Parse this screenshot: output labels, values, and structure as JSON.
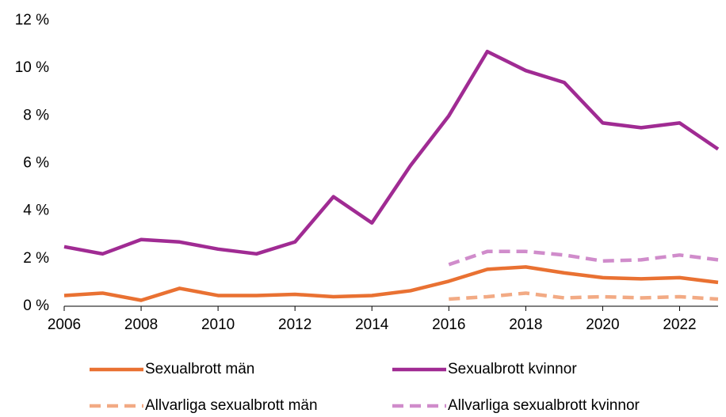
{
  "chart_data": {
    "type": "line",
    "x": [
      2006,
      2007,
      2008,
      2009,
      2010,
      2011,
      2012,
      2013,
      2014,
      2015,
      2016,
      2017,
      2018,
      2019,
      2020,
      2021,
      2022,
      2023
    ],
    "xlim": [
      2006,
      2023
    ],
    "xticks": [
      2006,
      2008,
      2010,
      2012,
      2014,
      2016,
      2018,
      2020,
      2022
    ],
    "ylim": [
      0,
      12
    ],
    "yticks": [
      {
        "value": 0,
        "label": "0 %"
      },
      {
        "value": 2,
        "label": "2 %"
      },
      {
        "value": 4,
        "label": "4 %"
      },
      {
        "value": 6,
        "label": "6 %"
      },
      {
        "value": 8,
        "label": "8 %"
      },
      {
        "value": 10,
        "label": "10 %"
      },
      {
        "value": 12,
        "label": "12 %"
      }
    ],
    "grid": false,
    "legend": "bottom",
    "series": [
      {
        "name": "Sexualbrott män",
        "color": "#e97132",
        "style": "solid",
        "values": [
          0.45,
          0.55,
          0.25,
          0.75,
          0.45,
          0.45,
          0.5,
          0.4,
          0.45,
          0.65,
          1.05,
          1.55,
          1.65,
          1.4,
          1.2,
          1.15,
          1.2,
          1.0
        ]
      },
      {
        "name": "Sexualbrott kvinnor",
        "color": "#a02b93",
        "style": "solid",
        "values": [
          2.5,
          2.2,
          2.8,
          2.7,
          2.4,
          2.2,
          2.7,
          4.6,
          3.5,
          5.9,
          8.0,
          10.7,
          9.9,
          9.4,
          7.7,
          7.5,
          7.7,
          6.6
        ]
      },
      {
        "name": "Allvarliga sexualbrott män",
        "color": "#f2aa84",
        "style": "dashed",
        "values": [
          null,
          null,
          null,
          null,
          null,
          null,
          null,
          null,
          null,
          null,
          0.3,
          0.4,
          0.55,
          0.35,
          0.4,
          0.35,
          0.4,
          0.3
        ]
      },
      {
        "name": "Allvarliga sexualbrott kvinnor",
        "color": "#d08ccb",
        "style": "dashed",
        "values": [
          null,
          null,
          null,
          null,
          null,
          null,
          null,
          null,
          null,
          null,
          1.75,
          2.3,
          2.3,
          2.15,
          1.9,
          1.95,
          2.15,
          1.95
        ]
      }
    ]
  }
}
